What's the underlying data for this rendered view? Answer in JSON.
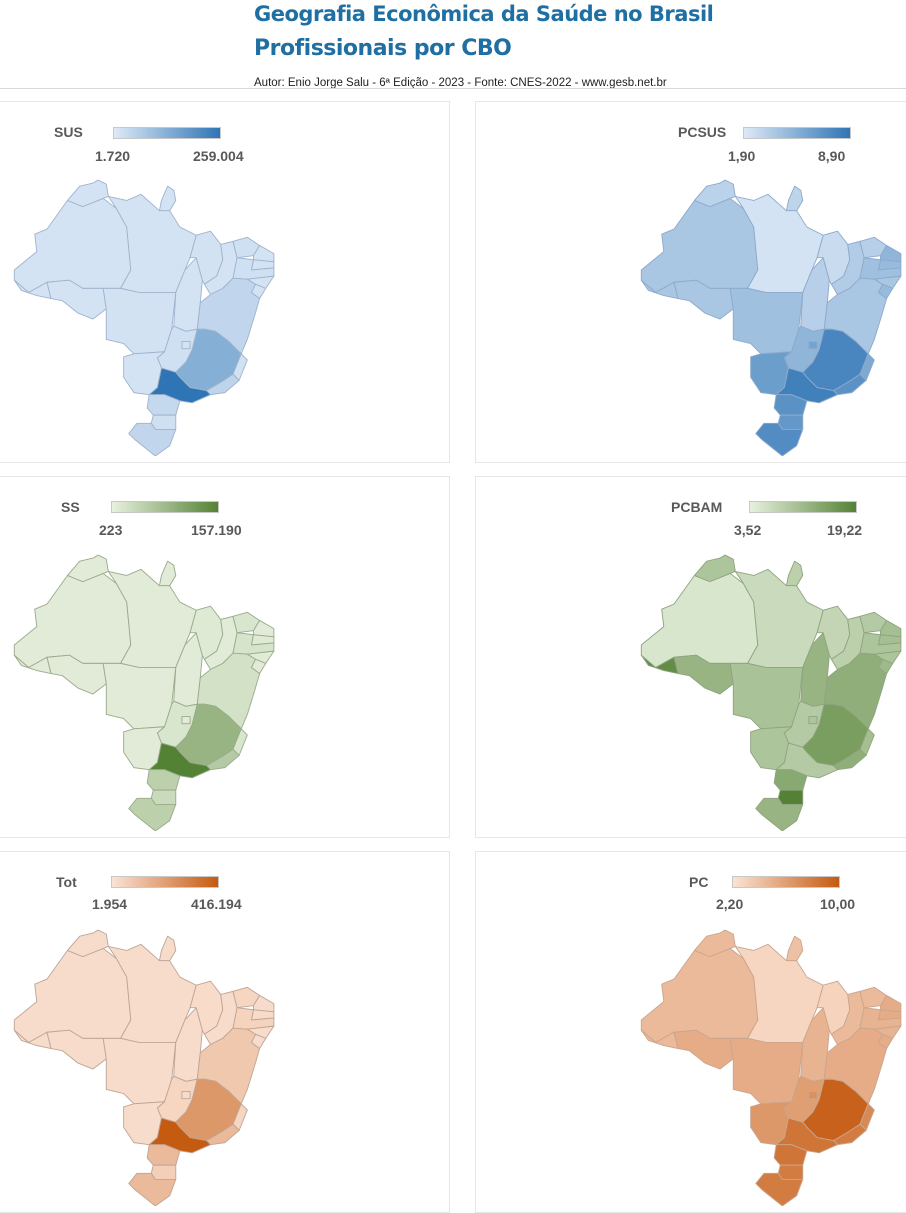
{
  "header": {
    "title": "Geografia Econômica da Saúde no Brasil",
    "subtitle": "Profissionais por CBO",
    "author": "Autor: Enio Jorge Salu - 6ª Edição - 2023 - Fonte: CNES-2022 - www.gesb.net.br"
  },
  "panels": [
    {
      "id": "sus",
      "legend_title": "SUS",
      "min": "1.720",
      "max": "259.004",
      "color_low": "#dde9f7",
      "color_high": "#2f75b5",
      "stroke": "#9fb4cc",
      "levels": {
        "AM": 0.05,
        "PA": 0.05,
        "AC": 0.05,
        "RO": 0.05,
        "RR": 0.05,
        "AP": 0.05,
        "MT": 0.06,
        "TO": 0.05,
        "MA": 0.06,
        "PI": 0.05,
        "CE": 0.08,
        "RN": 0.05,
        "PB": 0.05,
        "PE": 0.08,
        "AL": 0.05,
        "SE": 0.05,
        "BA": 0.16,
        "GO": 0.08,
        "DF": 0.05,
        "MS": 0.05,
        "MG": 0.5,
        "ES": 0.06,
        "RJ": 0.18,
        "SP": 1.0,
        "PR": 0.14,
        "SC": 0.08,
        "RS": 0.16
      }
    },
    {
      "id": "pcsus",
      "legend_title": "PCSUS",
      "min": "1,90",
      "max": "8,90",
      "color_low": "#dde9f7",
      "color_high": "#2f75b5",
      "stroke": "#8eaacb",
      "levels": {
        "AM": 0.3,
        "PA": 0.05,
        "AC": 0.3,
        "RO": 0.3,
        "RR": 0.2,
        "AP": 0.18,
        "MT": 0.35,
        "TO": 0.22,
        "MA": 0.12,
        "PI": 0.25,
        "CE": 0.22,
        "RN": 0.45,
        "PB": 0.4,
        "PE": 0.35,
        "AL": 0.3,
        "SE": 0.4,
        "BA": 0.3,
        "GO": 0.45,
        "DF": 0.6,
        "MS": 0.65,
        "MG": 0.85,
        "ES": 0.55,
        "RJ": 0.75,
        "SP": 0.9,
        "PR": 0.75,
        "SC": 0.7,
        "RS": 0.8
      }
    },
    {
      "id": "ss",
      "legend_title": "SS",
      "min": "223",
      "max": "157.190",
      "color_low": "#e8f1df",
      "color_high": "#548235",
      "stroke": "#9aab8c",
      "levels": {
        "AM": 0.05,
        "PA": 0.05,
        "AC": 0.05,
        "RO": 0.05,
        "RR": 0.05,
        "AP": 0.05,
        "MT": 0.05,
        "TO": 0.05,
        "MA": 0.06,
        "PI": 0.05,
        "CE": 0.1,
        "RN": 0.05,
        "PB": 0.06,
        "PE": 0.12,
        "AL": 0.05,
        "SE": 0.05,
        "BA": 0.14,
        "GO": 0.1,
        "DF": 0.05,
        "MS": 0.05,
        "MG": 0.55,
        "ES": 0.1,
        "RJ": 0.35,
        "SP": 1.0,
        "PR": 0.3,
        "SC": 0.2,
        "RS": 0.3
      }
    },
    {
      "id": "pcbam",
      "legend_title": "PCBAM",
      "min": "3,52",
      "max": "19,22",
      "color_low": "#e8f1df",
      "color_high": "#548235",
      "stroke": "#8fa480",
      "levels": {
        "AM": 0.1,
        "PA": 0.2,
        "AC": 0.9,
        "RO": 0.55,
        "RR": 0.4,
        "AP": 0.3,
        "MT": 0.42,
        "TO": 0.55,
        "MA": 0.25,
        "PI": 0.3,
        "CE": 0.35,
        "RN": 0.45,
        "PB": 0.45,
        "PE": 0.4,
        "AL": 0.4,
        "SE": 0.5,
        "BA": 0.6,
        "GO": 0.35,
        "DF": 0.4,
        "MS": 0.4,
        "MG": 0.75,
        "ES": 0.45,
        "RJ": 0.6,
        "SP": 0.35,
        "PR": 0.65,
        "SC": 1.0,
        "RS": 0.55
      }
    },
    {
      "id": "tot",
      "legend_title": "Tot",
      "min": "1.954",
      "max": "416.194",
      "color_low": "#fbe3d5",
      "color_high": "#c55a11",
      "stroke": "#bfa596",
      "levels": {
        "AM": 0.05,
        "PA": 0.05,
        "AC": 0.05,
        "RO": 0.05,
        "RR": 0.05,
        "AP": 0.05,
        "MT": 0.05,
        "TO": 0.05,
        "MA": 0.06,
        "PI": 0.05,
        "CE": 0.1,
        "RN": 0.05,
        "PB": 0.06,
        "PE": 0.12,
        "AL": 0.05,
        "SE": 0.05,
        "BA": 0.2,
        "GO": 0.1,
        "DF": 0.05,
        "MS": 0.05,
        "MG": 0.55,
        "ES": 0.1,
        "RJ": 0.3,
        "SP": 1.0,
        "PR": 0.3,
        "SC": 0.15,
        "RS": 0.3
      }
    },
    {
      "id": "pc",
      "legend_title": "PC",
      "min": "2,20",
      "max": "10,00",
      "color_low": "#fbe3d5",
      "color_high": "#c55a11",
      "stroke": "#c9a68e",
      "levels": {
        "AM": 0.3,
        "PA": 0.1,
        "AC": 0.3,
        "RO": 0.4,
        "RR": 0.3,
        "AP": 0.25,
        "MT": 0.4,
        "TO": 0.35,
        "MA": 0.12,
        "PI": 0.3,
        "CE": 0.3,
        "RN": 0.4,
        "PB": 0.4,
        "PE": 0.35,
        "AL": 0.35,
        "SE": 0.4,
        "BA": 0.4,
        "GO": 0.5,
        "DF": 0.6,
        "MS": 0.55,
        "MG": 0.95,
        "ES": 0.65,
        "RJ": 0.75,
        "SP": 0.8,
        "PR": 0.8,
        "SC": 0.75,
        "RS": 0.75
      }
    }
  ]
}
